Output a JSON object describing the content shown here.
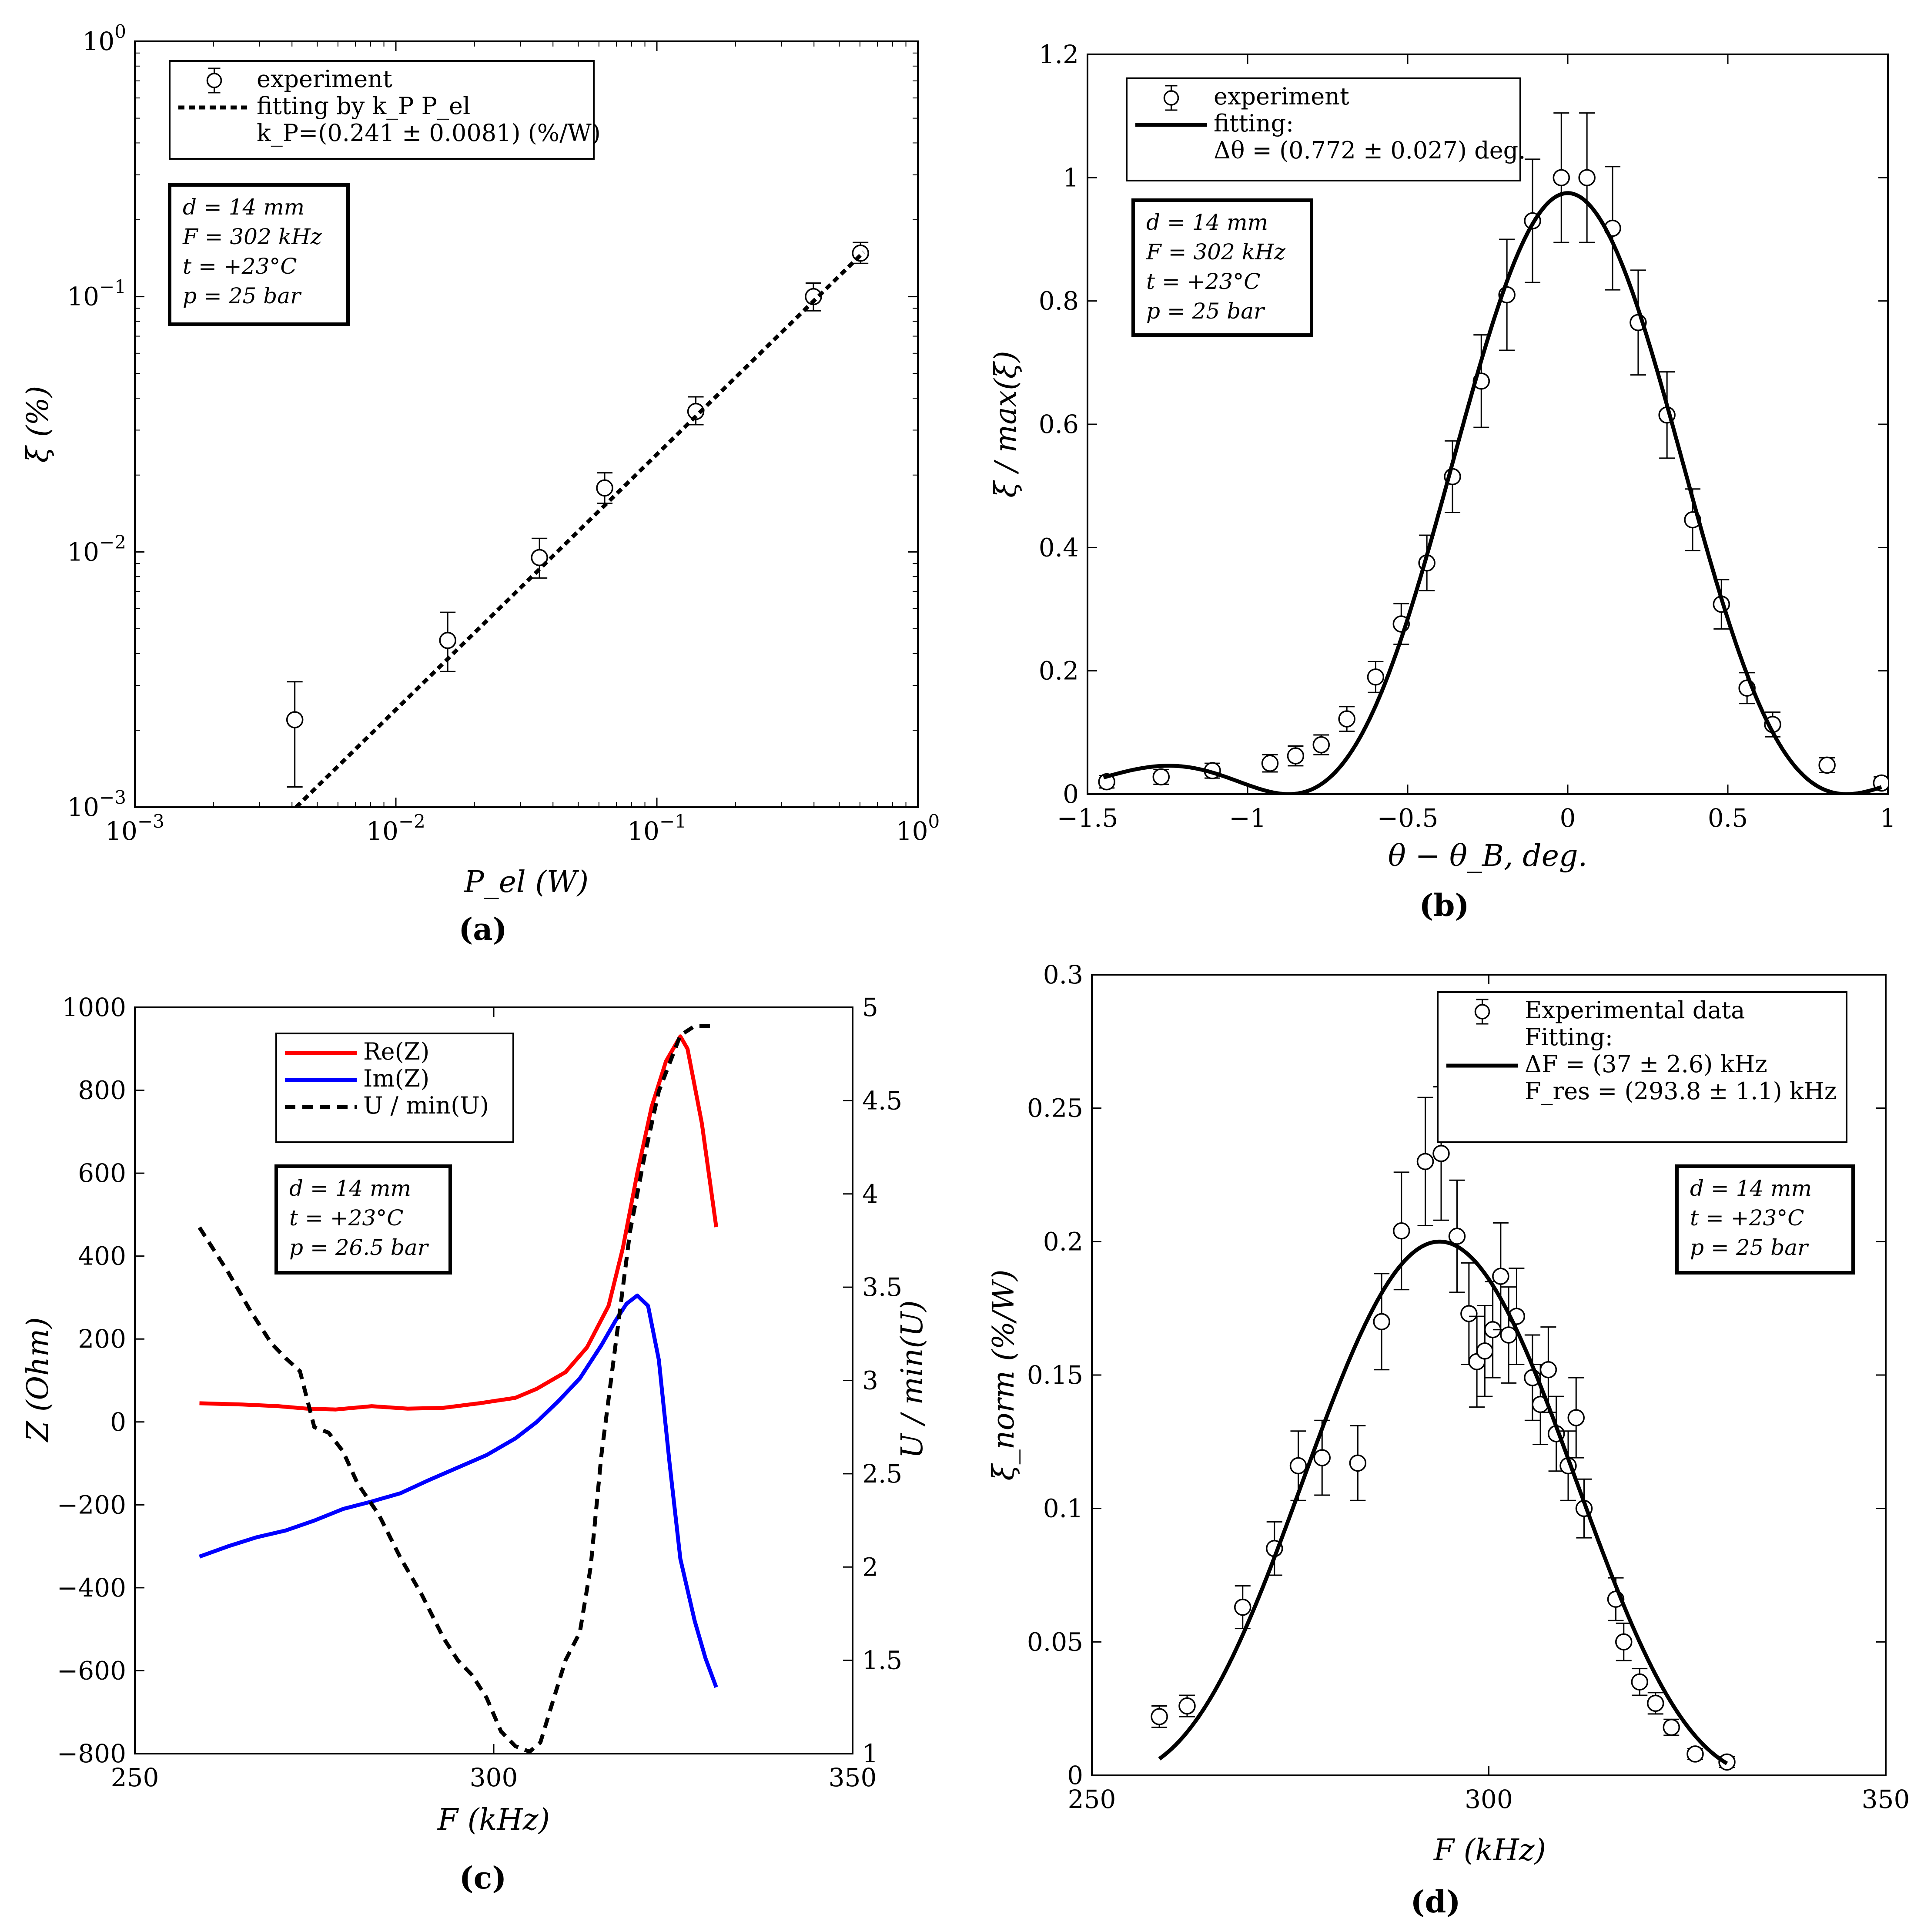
{
  "chart_data": [
    {
      "id": "a",
      "panel_label": "(a)",
      "type": "scatter",
      "xscale": "log",
      "yscale": "log",
      "xlabel": "P_el (W)",
      "ylabel": "ξ (%)",
      "xlim": [
        0.001,
        1
      ],
      "ylim": [
        0.001,
        1
      ],
      "x_ticks": [
        {
          "v": 0.001,
          "label": "10^-3"
        },
        {
          "v": 0.01,
          "label": "10^-2"
        },
        {
          "v": 0.1,
          "label": "10^-1"
        },
        {
          "v": 1,
          "label": "10^0"
        }
      ],
      "y_ticks": [
        {
          "v": 0.001,
          "label": "10^-3"
        },
        {
          "v": 0.01,
          "label": "10^-2"
        },
        {
          "v": 0.1,
          "label": "10^-1"
        },
        {
          "v": 1,
          "label": "10^0"
        }
      ],
      "series": [
        {
          "name": "experiment",
          "style": "markers",
          "color": "#000000",
          "x": [
            0.0041,
            0.0158,
            0.0355,
            0.0631,
            0.141,
            0.398,
            0.603
          ],
          "y": [
            0.0022,
            0.0045,
            0.0095,
            0.0178,
            0.0355,
            0.1,
            0.148
          ],
          "yerr_low": [
            0.0012,
            0.0034,
            0.0079,
            0.0155,
            0.0315,
            0.088,
            0.135
          ],
          "yerr_high": [
            0.0031,
            0.0058,
            0.0113,
            0.0204,
            0.0405,
            0.113,
            0.163
          ]
        },
        {
          "name": "fitting by k_P P_el",
          "style": "dotted",
          "color": "#000000",
          "x": [
            0.00415,
            0.62
          ],
          "y": [
            0.001,
            0.1494
          ]
        }
      ],
      "legend": {
        "placement": "top-left",
        "entries": [
          "experiment",
          "fitting by k_P P_el",
          "k_P=(0.241 ± 0.0081) (%/W)"
        ]
      },
      "info_box": [
        "d = 14 mm",
        "F = 302 kHz",
        "t = +23°C",
        "p = 25 bar"
      ]
    },
    {
      "id": "b",
      "panel_label": "(b)",
      "type": "scatter",
      "xlabel": "θ − θ_B, deg.",
      "ylabel": "ξ / max(ξ)",
      "xlim": [
        -1.5,
        1
      ],
      "ylim": [
        0,
        1.2
      ],
      "x_ticks": [
        {
          "v": -1.5,
          "label": "−1.5"
        },
        {
          "v": -1,
          "label": "−1"
        },
        {
          "v": -0.5,
          "label": "−0.5"
        },
        {
          "v": 0,
          "label": "0"
        },
        {
          "v": 0.5,
          "label": "0.5"
        },
        {
          "v": 1,
          "label": "1"
        }
      ],
      "y_ticks": [
        {
          "v": 0,
          "label": "0"
        },
        {
          "v": 0.2,
          "label": "0.2"
        },
        {
          "v": 0.4,
          "label": "0.4"
        },
        {
          "v": 0.6,
          "label": "0.6"
        },
        {
          "v": 0.8,
          "label": "0.8"
        },
        {
          "v": 1,
          "label": "1"
        },
        {
          "v": 1.2,
          "label": "1.2"
        }
      ],
      "series": [
        {
          "name": "experiment",
          "style": "markers",
          "color": "#000000",
          "x": [
            -1.44,
            -1.27,
            -1.11,
            -0.93,
            -0.85,
            -0.77,
            -0.69,
            -0.6,
            -0.52,
            -0.44,
            -0.36,
            -0.27,
            -0.19,
            -0.11,
            -0.02,
            0.06,
            0.14,
            0.22,
            0.31,
            0.39,
            0.48,
            0.56,
            0.64,
            0.81,
            0.98
          ],
          "y": [
            0.02,
            0.028,
            0.038,
            0.05,
            0.062,
            0.08,
            0.122,
            0.19,
            0.276,
            0.375,
            0.515,
            0.67,
            0.81,
            0.93,
            1.0,
            1.0,
            0.918,
            0.765,
            0.615,
            0.445,
            0.308,
            0.172,
            0.113,
            0.047,
            0.018
          ],
          "yerr": [
            0.01,
            0.012,
            0.012,
            0.014,
            0.016,
            0.016,
            0.02,
            0.025,
            0.033,
            0.045,
            0.058,
            0.075,
            0.09,
            0.1,
            0.105,
            0.105,
            0.1,
            0.085,
            0.07,
            0.05,
            0.04,
            0.025,
            0.02,
            0.012,
            0.01
          ]
        },
        {
          "name": "fitting",
          "style": "solid",
          "color": "#000000",
          "function": "sinc2",
          "delta_theta": 0.772,
          "peak": 0.975,
          "x_range": [
            -1.45,
            0.98
          ]
        }
      ],
      "legend": {
        "placement": "top-left",
        "entries": [
          "experiment",
          "fitting:",
          "Δθ = (0.772 ± 0.027) deg."
        ]
      },
      "info_box": [
        "d = 14 mm",
        "F = 302 kHz",
        "t = +23°C",
        "p = 25 bar"
      ]
    },
    {
      "id": "c",
      "panel_label": "(c)",
      "type": "line",
      "xlabel": "F (kHz)",
      "ylabel": "Z (Ohm)",
      "ylabel_right": "U / min(U)",
      "xlim": [
        250,
        350
      ],
      "ylim": [
        -800,
        1000
      ],
      "ylim_right": [
        1,
        5
      ],
      "x_ticks": [
        {
          "v": 250,
          "label": "250"
        },
        {
          "v": 300,
          "label": "300"
        },
        {
          "v": 350,
          "label": "350"
        }
      ],
      "y_ticks": [
        {
          "v": -800,
          "label": "−800"
        },
        {
          "v": -600,
          "label": "−600"
        },
        {
          "v": -400,
          "label": "−400"
        },
        {
          "v": -200,
          "label": "−200"
        },
        {
          "v": 0,
          "label": "0"
        },
        {
          "v": 200,
          "label": "200"
        },
        {
          "v": 400,
          "label": "400"
        },
        {
          "v": 600,
          "label": "600"
        },
        {
          "v": 800,
          "label": "800"
        },
        {
          "v": 1000,
          "label": "1000"
        }
      ],
      "y_ticks_right": [
        {
          "v": 1,
          "label": "1"
        },
        {
          "v": 1.5,
          "label": "1.5"
        },
        {
          "v": 2,
          "label": "2"
        },
        {
          "v": 2.5,
          "label": "2.5"
        },
        {
          "v": 3,
          "label": "3"
        },
        {
          "v": 3.5,
          "label": "3.5"
        },
        {
          "v": 4,
          "label": "4"
        },
        {
          "v": 4.5,
          "label": "4.5"
        },
        {
          "v": 5,
          "label": "5"
        }
      ],
      "series": [
        {
          "name": "Re(Z)",
          "style": "solid",
          "color": "#ff0000",
          "axis": "left",
          "x": [
            259,
            265,
            270,
            274,
            278,
            283,
            288,
            293,
            298,
            303,
            306,
            310,
            313,
            316,
            318,
            320,
            322,
            324,
            326,
            327,
            329,
            331
          ],
          "y": [
            45,
            42,
            38,
            32,
            30,
            38,
            32,
            34,
            45,
            58,
            80,
            120,
            180,
            280,
            420,
            600,
            760,
            870,
            930,
            900,
            720,
            470
          ]
        },
        {
          "name": "Im(Z)",
          "style": "solid",
          "color": "#0000ff",
          "axis": "left",
          "x": [
            259,
            263,
            267,
            271,
            275,
            279,
            283,
            287,
            291,
            295,
            299,
            303,
            306,
            309,
            312,
            315,
            317,
            318.5,
            320,
            321.5,
            323,
            324.5,
            326,
            328,
            329.5,
            331
          ],
          "y": [
            -325,
            -300,
            -278,
            -262,
            -238,
            -210,
            -192,
            -172,
            -140,
            -110,
            -80,
            -40,
            0,
            50,
            105,
            185,
            245,
            285,
            305,
            280,
            150,
            -100,
            -330,
            -480,
            -570,
            -640
          ]
        },
        {
          "name": "U / min(U)",
          "style": "dashed",
          "color": "#000000",
          "axis": "right",
          "x": [
            259,
            263,
            266,
            269,
            271,
            273,
            275,
            277,
            279,
            281,
            284,
            287,
            290,
            293,
            295,
            297,
            299,
            301,
            303,
            305,
            306.5,
            308,
            310,
            312,
            313.5,
            315,
            317,
            319,
            321,
            323,
            325,
            326,
            328,
            331
          ],
          "y": [
            3.82,
            3.58,
            3.38,
            3.2,
            3.12,
            3.05,
            2.75,
            2.72,
            2.62,
            2.45,
            2.28,
            2.05,
            1.85,
            1.62,
            1.5,
            1.42,
            1.3,
            1.12,
            1.04,
            1.01,
            1.06,
            1.25,
            1.5,
            1.65,
            2.0,
            2.6,
            3.2,
            3.8,
            4.2,
            4.55,
            4.75,
            4.85,
            4.9,
            4.9
          ]
        }
      ],
      "legend": {
        "placement": "top-center",
        "entries": [
          "Re(Z)",
          "Im(Z)",
          "U / min(U)"
        ]
      },
      "info_box": [
        "d = 14 mm",
        "t = +23°C",
        "p = 26.5 bar"
      ]
    },
    {
      "id": "d",
      "panel_label": "(d)",
      "type": "scatter",
      "xlabel": "F (kHz)",
      "ylabel": "ξ_norm (%/W)",
      "xlim": [
        250,
        350
      ],
      "ylim": [
        0,
        0.3
      ],
      "x_ticks": [
        {
          "v": 250,
          "label": "250"
        },
        {
          "v": 300,
          "label": "300"
        },
        {
          "v": 350,
          "label": "350"
        }
      ],
      "y_ticks": [
        {
          "v": 0,
          "label": "0"
        },
        {
          "v": 0.05,
          "label": "0.05"
        },
        {
          "v": 0.1,
          "label": "0.1"
        },
        {
          "v": 0.15,
          "label": "0.15"
        },
        {
          "v": 0.2,
          "label": "0.2"
        },
        {
          "v": 0.25,
          "label": "0.25"
        },
        {
          "v": 0.3,
          "label": "0.3"
        }
      ],
      "series": [
        {
          "name": "Experimental data",
          "style": "markers",
          "color": "#000000",
          "x": [
            258.5,
            262,
            269,
            273,
            276,
            279,
            283.5,
            286.5,
            289,
            292,
            294,
            296,
            297.5,
            298.5,
            299.5,
            300.5,
            301.5,
            302.5,
            303.5,
            305.5,
            306.5,
            307.5,
            308.5,
            310,
            311,
            312,
            316,
            317,
            319,
            321,
            323,
            326,
            330
          ],
          "y": [
            0.022,
            0.026,
            0.063,
            0.085,
            0.116,
            0.119,
            0.117,
            0.17,
            0.204,
            0.23,
            0.233,
            0.202,
            0.173,
            0.155,
            0.159,
            0.167,
            0.187,
            0.165,
            0.172,
            0.149,
            0.139,
            0.152,
            0.128,
            0.116,
            0.134,
            0.1,
            0.066,
            0.05,
            0.035,
            0.027,
            0.018,
            0.008,
            0.005
          ],
          "yerr": [
            0.004,
            0.004,
            0.008,
            0.01,
            0.013,
            0.014,
            0.014,
            0.018,
            0.022,
            0.024,
            0.025,
            0.021,
            0.019,
            0.017,
            0.017,
            0.018,
            0.02,
            0.018,
            0.018,
            0.016,
            0.015,
            0.016,
            0.014,
            0.013,
            0.015,
            0.011,
            0.008,
            0.007,
            0.005,
            0.004,
            0.003,
            0.002,
            0.002
          ]
        },
        {
          "name": "Fitting",
          "style": "solid",
          "color": "#000000",
          "function": "sinc2",
          "center": 293.8,
          "width": 37,
          "peak": 0.2,
          "x_range": [
            258.5,
            330
          ]
        }
      ],
      "legend": {
        "placement": "top-right",
        "entries": [
          "Experimental data",
          "Fitting:",
          "ΔF = (37 ± 2.6) kHz",
          "F_res = (293.8 ± 1.1) kHz"
        ]
      },
      "info_box": [
        "d = 14 mm",
        "t = +23°C",
        "p = 25 bar"
      ]
    }
  ]
}
